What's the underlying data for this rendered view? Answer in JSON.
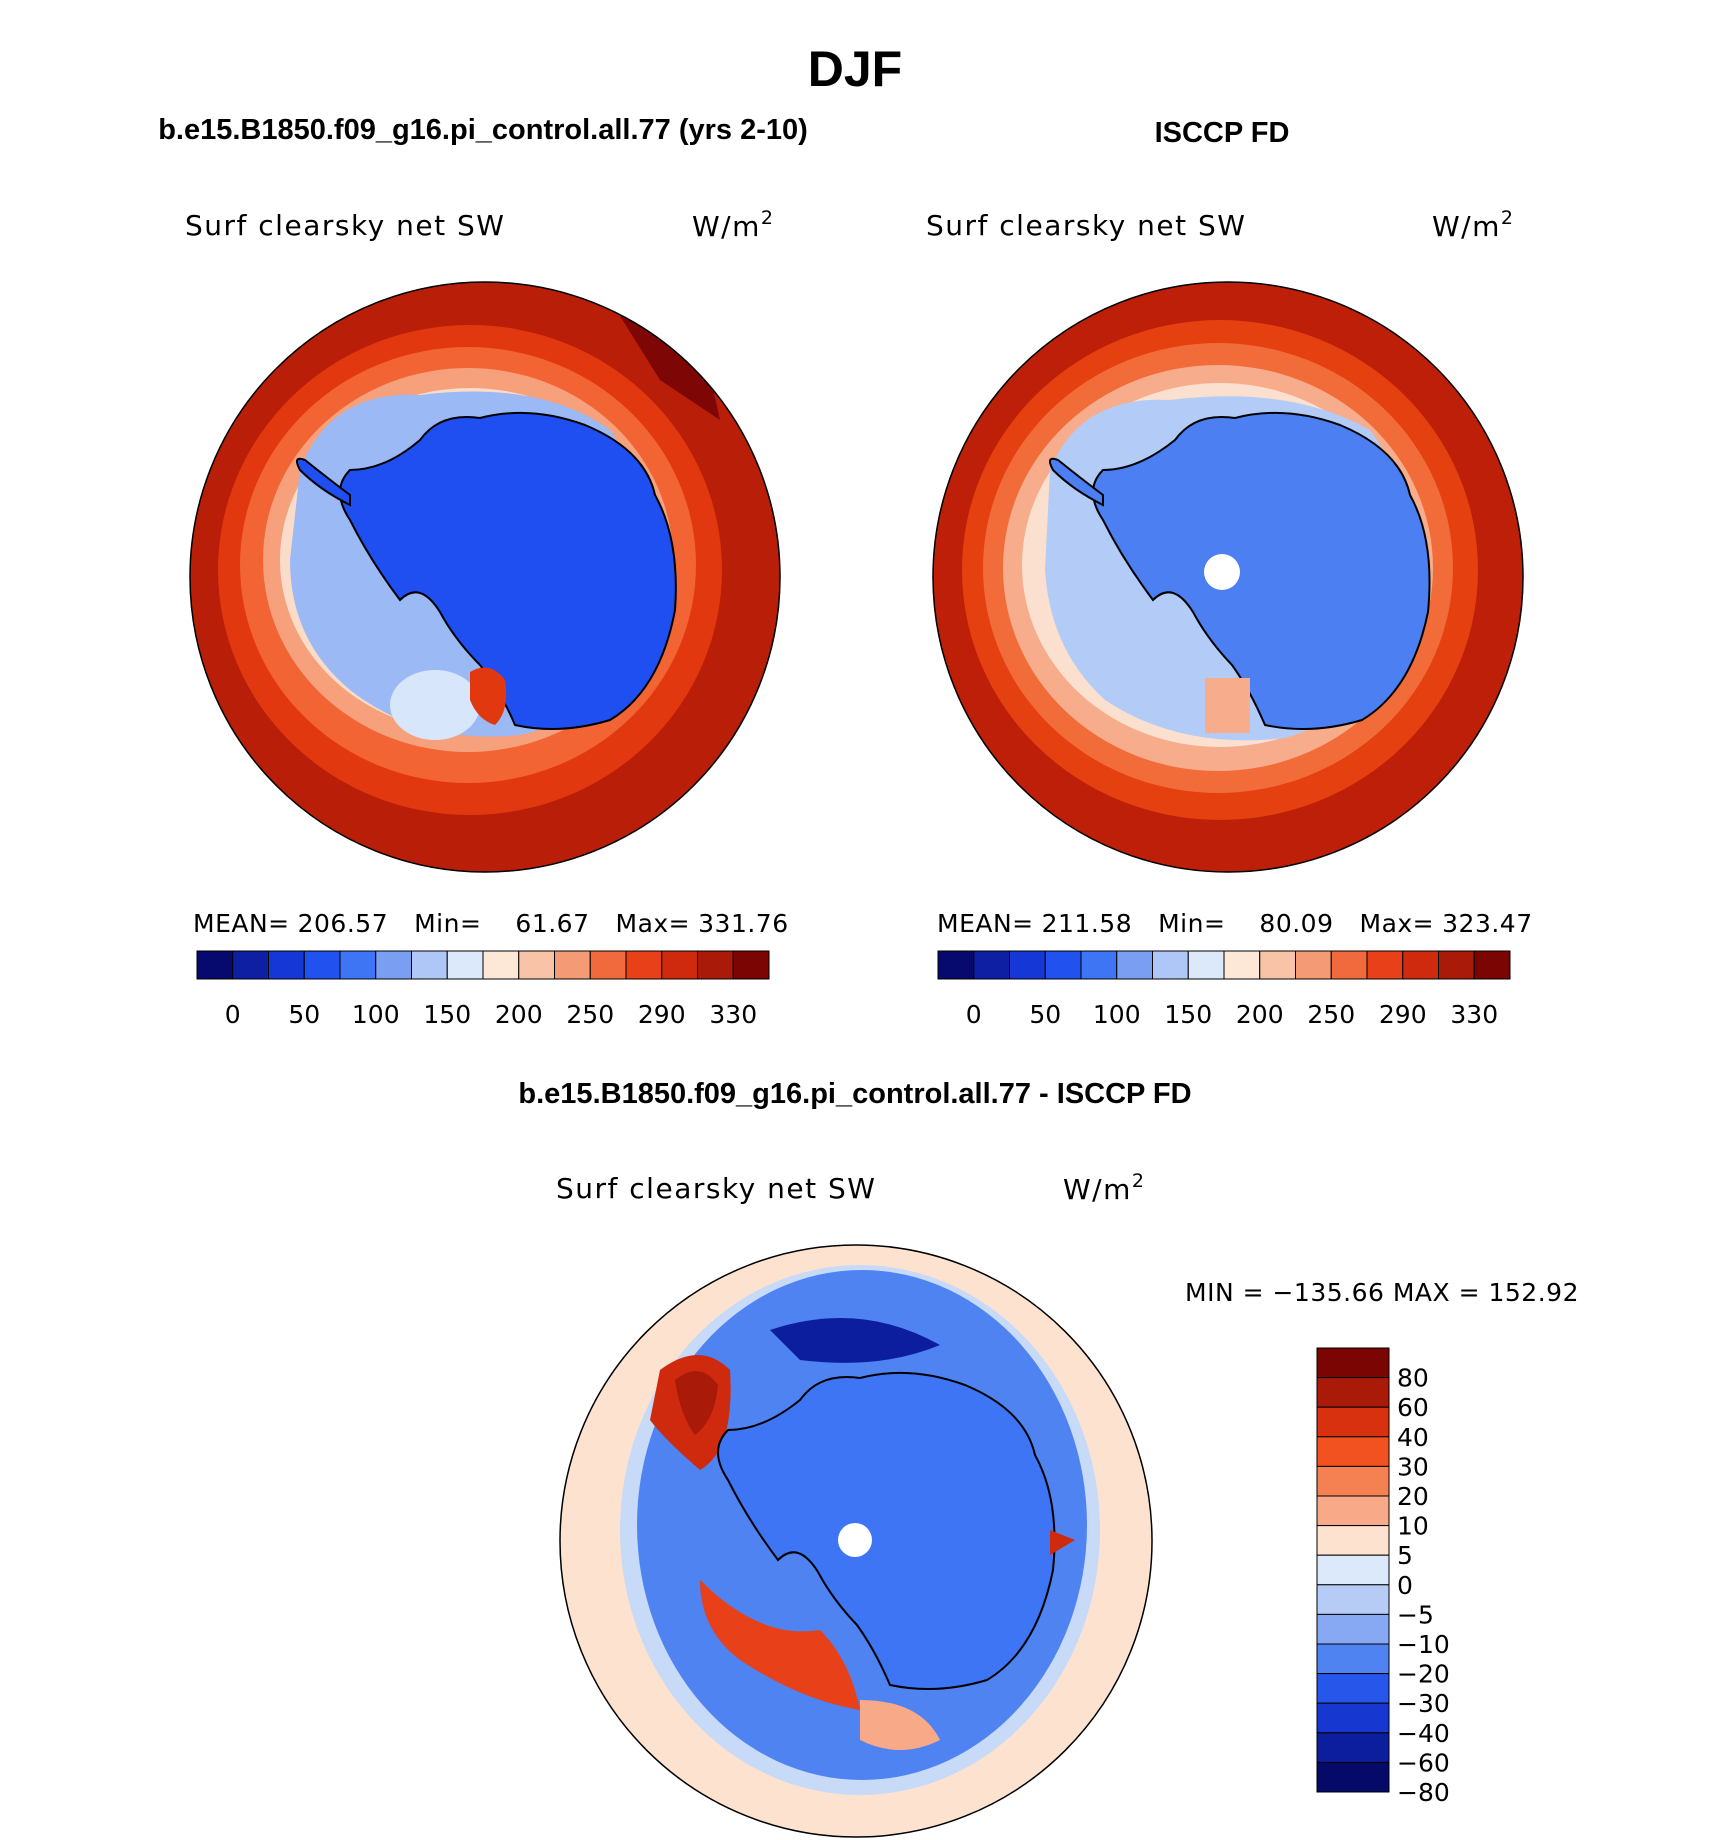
{
  "figure_title": "DJF",
  "panels": {
    "model": {
      "case_title": "b.e15.B1850.f09_g16.pi_control.all.77 (yrs 2-10)",
      "variable": "Surf clearsky net SW",
      "units_base": "W/m",
      "units_exp": "2",
      "stats": {
        "mean_label": "MEAN=",
        "mean": "206.57",
        "min_label": "Min=",
        "min": "61.67",
        "max_label": "Max=",
        "max": "331.76"
      }
    },
    "obs": {
      "case_title": "ISCCP FD",
      "variable": "Surf clearsky net SW",
      "units_base": "W/m",
      "units_exp": "2",
      "stats": {
        "mean_label": "MEAN=",
        "mean": "211.58",
        "min_label": "Min=",
        "min": "80.09",
        "max_label": "Max=",
        "max": "323.47"
      }
    },
    "diff": {
      "case_title": "b.e15.B1850.f09_g16.pi_control.all.77 - ISCCP FD",
      "variable": "Surf clearsky net SW",
      "units_base": "W/m",
      "units_exp": "2",
      "minmax": "MIN = −135.66 MAX = 152.92"
    }
  },
  "chart_data": [
    {
      "type": "heatmap",
      "title": "b.e15.B1850.f09_g16.pi_control.all.77 (yrs 2-10)",
      "subtitle": "Surf clearsky net SW",
      "units": "W/m2",
      "projection": "south polar stereographic",
      "mean": 206.57,
      "min": 61.67,
      "max": 331.76,
      "colorbar_labels": [
        "0",
        "50",
        "100",
        "150",
        "200",
        "250",
        "290",
        "330"
      ],
      "colors": [
        "#060a6e",
        "#0e1fa3",
        "#1537d6",
        "#2152ef",
        "#3d75f4",
        "#7a9ff2",
        "#afc7f7",
        "#dbe9fb",
        "#fde7d6",
        "#f8c3a6",
        "#f49a74",
        "#f06a3d",
        "#e84018",
        "#cf2a0e",
        "#a91a08",
        "#7a0503"
      ]
    },
    {
      "type": "heatmap",
      "title": "ISCCP FD",
      "subtitle": "Surf clearsky net SW",
      "units": "W/m2",
      "projection": "south polar stereographic",
      "mean": 211.58,
      "min": 80.09,
      "max": 323.47,
      "colorbar_labels": [
        "0",
        "50",
        "100",
        "150",
        "200",
        "250",
        "290",
        "330"
      ],
      "colors": [
        "#060a6e",
        "#0e1fa3",
        "#1537d6",
        "#2152ef",
        "#3d75f4",
        "#7a9ff2",
        "#afc7f7",
        "#dbe9fb",
        "#fde7d6",
        "#f8c3a6",
        "#f49a74",
        "#f06a3d",
        "#e84018",
        "#cf2a0e",
        "#a91a08",
        "#7a0503"
      ]
    },
    {
      "type": "heatmap",
      "title": "b.e15.B1850.f09_g16.pi_control.all.77 - ISCCP FD",
      "subtitle": "Surf clearsky net SW",
      "units": "W/m2",
      "projection": "south polar stereographic",
      "min": -135.66,
      "max": 152.92,
      "colorbar_labels": [
        "80",
        "60",
        "40",
        "30",
        "20",
        "10",
        "5",
        "0",
        "−5",
        "−10",
        "−20",
        "−30",
        "−40",
        "−60",
        "−80"
      ],
      "colors": [
        "#7a0503",
        "#a91a08",
        "#d8310f",
        "#f2521f",
        "#f58052",
        "#f8aa88",
        "#fde3cf",
        "#dbe9fb",
        "#b6ccf6",
        "#87a8f3",
        "#4f83f1",
        "#2657ea",
        "#1638d0",
        "#0c1e9e",
        "#050a68"
      ]
    }
  ]
}
